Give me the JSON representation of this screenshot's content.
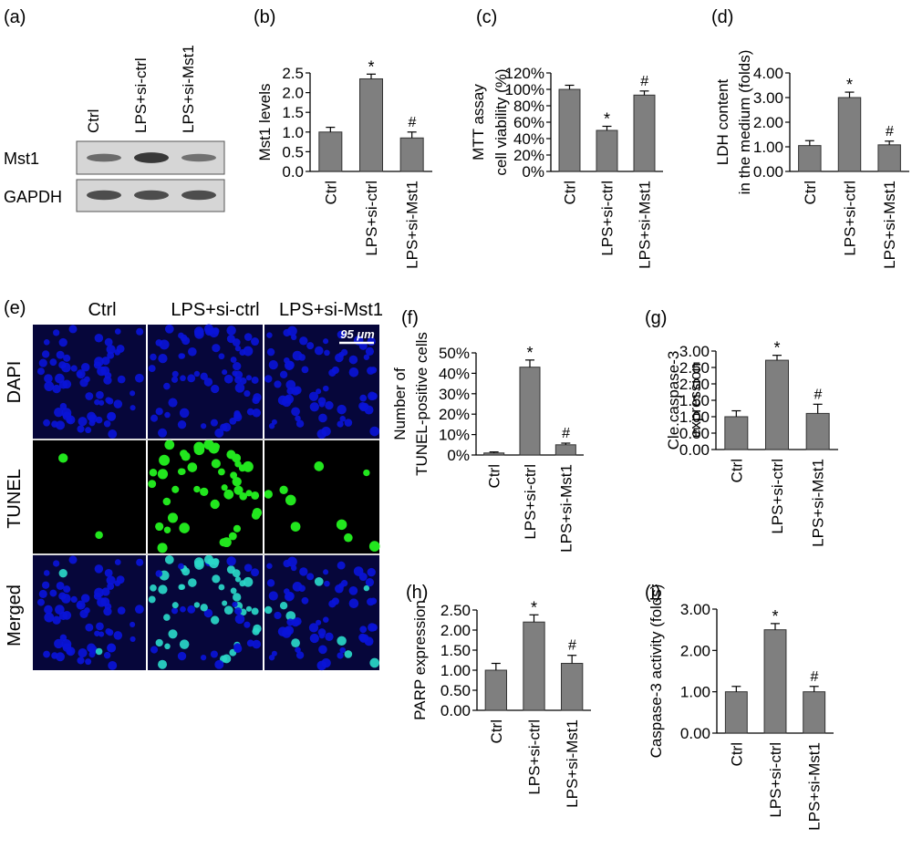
{
  "colors": {
    "bar": "#7f7f7f",
    "axis": "#000000",
    "dapi": "#0a14d8",
    "tunel": "#22e61e",
    "merged": "#2ad7c8",
    "blot_bg": "#d6d6d6",
    "band": "#2a2a2a"
  },
  "groups": [
    "Ctrl",
    "LPS+si-ctrl",
    "LPS+si-Mst1"
  ],
  "panel_a": {
    "label": "(a)",
    "lanes": [
      "Ctrl",
      "LPS+si-ctrl",
      "LPS+si-Mst1"
    ],
    "rows": [
      {
        "label": "Mst1",
        "intensity": [
          0.45,
          0.95,
          0.4
        ]
      },
      {
        "label": "GAPDH",
        "intensity": [
          0.75,
          0.75,
          0.75
        ]
      }
    ]
  },
  "panel_e": {
    "label": "(e)",
    "columns": [
      "Ctrl",
      "LPS+si-ctrl",
      "LPS+si-Mst1"
    ],
    "rows": [
      "DAPI",
      "TUNEL",
      "Merged"
    ],
    "scale_bar": "95 μm",
    "tunel_positive_fraction": [
      0.01,
      0.43,
      0.05
    ]
  },
  "chart_data": [
    {
      "panel": "(b)",
      "type": "bar",
      "ylabel": [
        "Mst1 levels"
      ],
      "categories": [
        "Ctrl",
        "LPS+si-ctrl",
        "LPS+si-Mst1"
      ],
      "values": [
        1.0,
        2.35,
        0.85
      ],
      "errors": [
        0.12,
        0.12,
        0.15
      ],
      "marks": [
        "",
        "*",
        "#"
      ],
      "ylim": [
        0,
        2.5
      ],
      "ticks": [
        "0.0",
        "0.5",
        "1.0",
        "1.5",
        "2.0",
        "2.5"
      ]
    },
    {
      "panel": "(c)",
      "type": "bar",
      "ylabel": [
        "MTT assay",
        "cell viability (%)"
      ],
      "categories": [
        "Ctrl",
        "LPS+si-ctrl",
        "LPS+si-Mst1"
      ],
      "values": [
        100,
        50,
        93
      ],
      "errors": [
        5,
        5,
        5
      ],
      "marks": [
        "",
        "*",
        "#"
      ],
      "ylim": [
        0,
        120
      ],
      "ticks": [
        "0%",
        "20%",
        "40%",
        "60%",
        "80%",
        "100%",
        "120%"
      ]
    },
    {
      "panel": "(d)",
      "type": "bar",
      "ylabel": [
        "LDH content",
        "in the medium (folds)"
      ],
      "categories": [
        "Ctrl",
        "LPS+si-ctrl",
        "LPS+si-Mst1"
      ],
      "values": [
        1.05,
        3.0,
        1.08
      ],
      "errors": [
        0.2,
        0.22,
        0.15
      ],
      "marks": [
        "",
        "*",
        "#"
      ],
      "ylim": [
        0,
        4
      ],
      "ticks": [
        "0.00",
        "1.00",
        "2.00",
        "3.00",
        "4.00"
      ]
    },
    {
      "panel": "(f)",
      "type": "bar",
      "ylabel": [
        "Number of",
        "TUNEL-positive cells"
      ],
      "categories": [
        "Ctrl",
        "LPS+si-ctrl",
        "LPS+si-Mst1"
      ],
      "values": [
        1,
        43,
        5
      ],
      "errors": [
        0.5,
        3.5,
        0.8
      ],
      "marks": [
        "",
        "*",
        "#"
      ],
      "ylim": [
        0,
        50
      ],
      "ticks": [
        "0%",
        "10%",
        "20%",
        "30%",
        "40%",
        "50%"
      ]
    },
    {
      "panel": "(g)",
      "type": "bar",
      "ylabel": [
        "Cle.caspase-3",
        "expression"
      ],
      "categories": [
        "Ctrl",
        "LPS+si-ctrl",
        "LPS+si-Mst1"
      ],
      "values": [
        1.0,
        2.72,
        1.1
      ],
      "errors": [
        0.18,
        0.15,
        0.28
      ],
      "marks": [
        "",
        "*",
        "#"
      ],
      "ylim": [
        0,
        3
      ],
      "ticks": [
        "0.00",
        "0.50",
        "1.00",
        "1.50",
        "2.00",
        "2.50",
        "3.00"
      ]
    },
    {
      "panel": "(h)",
      "type": "bar",
      "ylabel": [
        "PARP expression"
      ],
      "categories": [
        "Ctrl",
        "LPS+si-ctrl",
        "LPS+si-Mst1"
      ],
      "values": [
        1.0,
        2.2,
        1.17
      ],
      "errors": [
        0.17,
        0.18,
        0.2
      ],
      "marks": [
        "",
        "*",
        "#"
      ],
      "ylim": [
        0,
        2.5
      ],
      "ticks": [
        "0.00",
        "0.50",
        "1.00",
        "1.50",
        "2.00",
        "2.50"
      ]
    },
    {
      "panel": "(i)",
      "type": "bar",
      "ylabel": [
        "Caspase-3 activity (folds)"
      ],
      "categories": [
        "Ctrl",
        "LPS+si-ctrl",
        "LPS+si-Mst1"
      ],
      "values": [
        1.0,
        2.5,
        1.0
      ],
      "errors": [
        0.13,
        0.15,
        0.13
      ],
      "marks": [
        "",
        "*",
        "#"
      ],
      "ylim": [
        0,
        3
      ],
      "ticks": [
        "0.00",
        "1.00",
        "2.00",
        "3.00"
      ]
    }
  ]
}
